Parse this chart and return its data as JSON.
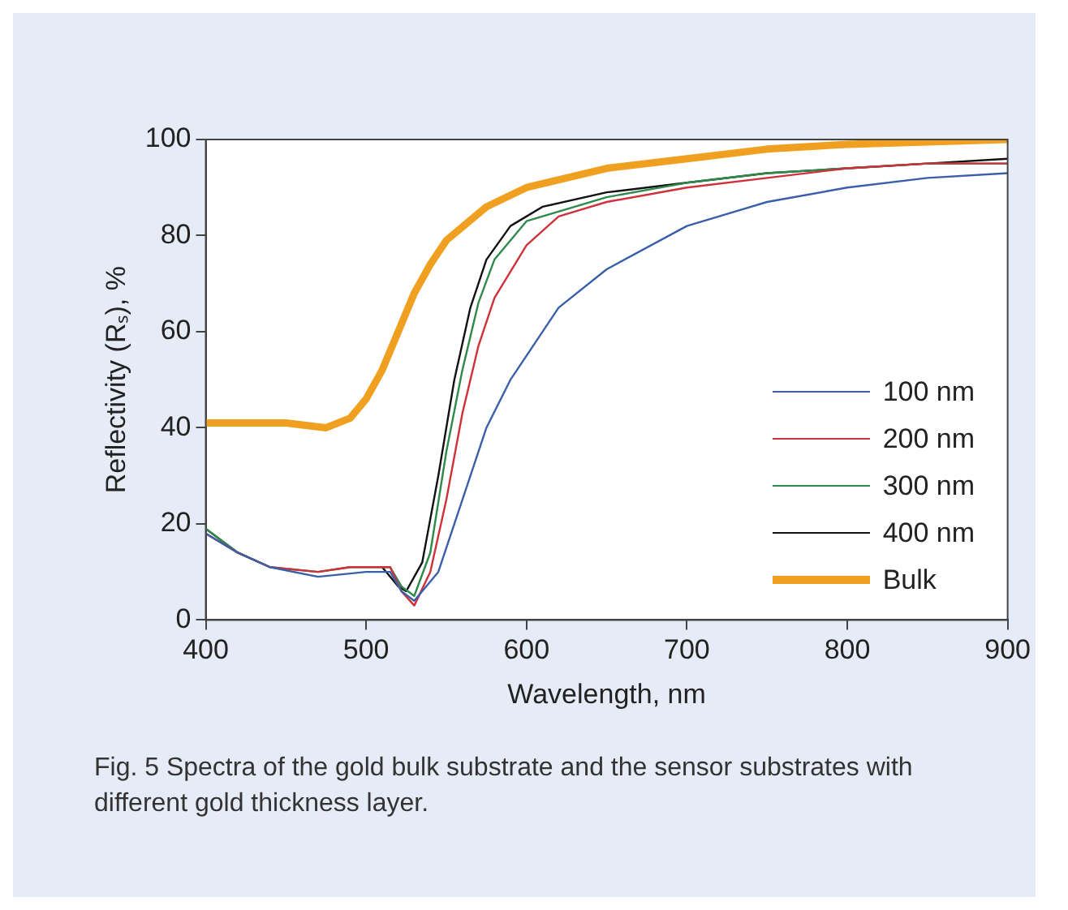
{
  "chart_data": {
    "type": "line",
    "xlabel": "Wavelength, nm",
    "ylabel": "Reflectivity (Rₛ), %",
    "xlim": [
      400,
      900
    ],
    "xticks": [
      400,
      500,
      600,
      700,
      800,
      900
    ],
    "ylim": [
      0,
      100
    ],
    "yticks": [
      0,
      20,
      40,
      60,
      80,
      100
    ],
    "grid": false,
    "legend": "bottom right",
    "marker": "none",
    "line_style": "solid",
    "annotations": [
      "Fig. 5  Spectra of the gold bulk substrate and the sensor substrates with different gold thickness layer."
    ],
    "series": [
      {
        "name": "100 nm",
        "color": "#3a5fa8",
        "x": [
          400,
          420,
          440,
          470,
          500,
          515,
          522,
          530,
          545,
          560,
          575,
          590,
          600,
          620,
          650,
          700,
          750,
          800,
          850,
          900
        ],
        "values": [
          18,
          14,
          11,
          9,
          10,
          10,
          6,
          4,
          10,
          25,
          40,
          50,
          55,
          65,
          73,
          82,
          87,
          90,
          92,
          93
        ]
      },
      {
        "name": "200 nm",
        "color": "#d0303a",
        "x": [
          400,
          420,
          440,
          470,
          490,
          515,
          522,
          530,
          540,
          550,
          560,
          570,
          580,
          600,
          620,
          650,
          700,
          750,
          800,
          850,
          900
        ],
        "values": [
          18,
          14,
          11,
          10,
          11,
          11,
          6,
          3,
          10,
          25,
          43,
          57,
          67,
          78,
          84,
          87,
          90,
          92,
          94,
          95,
          95
        ]
      },
      {
        "name": "300 nm",
        "color": "#2e8a4a",
        "x": [
          400,
          420,
          440,
          470,
          490,
          515,
          522,
          530,
          540,
          550,
          560,
          570,
          580,
          600,
          650,
          700,
          750,
          800,
          850,
          900
        ],
        "values": [
          19,
          14,
          11,
          10,
          11,
          11,
          7,
          5,
          14,
          35,
          52,
          66,
          75,
          83,
          88,
          91,
          93,
          94,
          95,
          95
        ]
      },
      {
        "name": "400 nm",
        "color": "#111111",
        "x": [
          400,
          420,
          440,
          470,
          490,
          510,
          520,
          525,
          535,
          545,
          555,
          565,
          575,
          590,
          610,
          650,
          700,
          750,
          800,
          850,
          900
        ],
        "values": [
          19,
          14,
          11,
          null,
          null,
          11,
          7,
          6,
          12,
          30,
          50,
          65,
          75,
          82,
          86,
          89,
          91,
          93,
          94,
          95,
          96
        ]
      },
      {
        "name": "Bulk",
        "color": "#f0a020",
        "x": [
          400,
          450,
          475,
          490,
          500,
          510,
          520,
          530,
          540,
          550,
          575,
          600,
          650,
          700,
          750,
          800,
          850,
          900
        ],
        "values": [
          41,
          41,
          40,
          42,
          46,
          52,
          60,
          68,
          74,
          79,
          86,
          90,
          94,
          96,
          98,
          99,
          99.5,
          100
        ]
      }
    ]
  }
}
